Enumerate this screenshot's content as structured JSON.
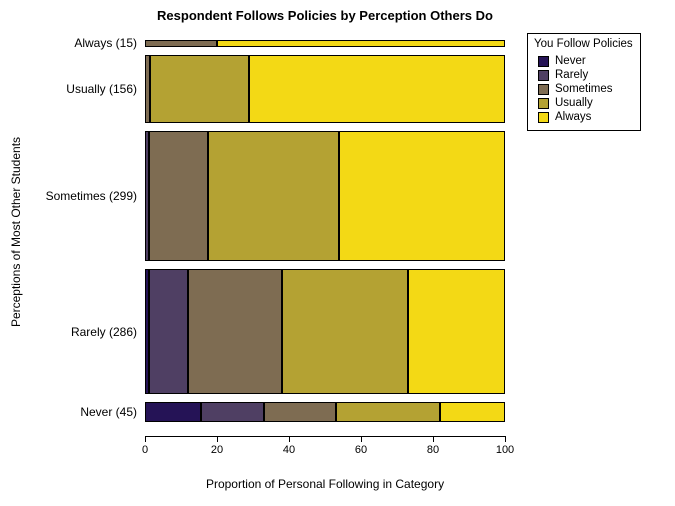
{
  "title": "Respondent Follows Policies by Perception Others Do",
  "x_axis": {
    "label": "Proportion of Personal Following in Category",
    "ticks": [
      0,
      20,
      40,
      60,
      80,
      100
    ]
  },
  "y_axis": {
    "label": "Perceptions of Most Other Students"
  },
  "chart_data": {
    "type": "bar",
    "subtype": "horizontal-stacked-spineplot",
    "title": "Respondent Follows Policies by Perception Others Do",
    "xlabel": "Proportion of Personal Following in Category",
    "ylabel": "Perceptions of Most Other Students",
    "xlim": [
      0,
      100
    ],
    "x_ticks": [
      0,
      20,
      40,
      60,
      80,
      100
    ],
    "grid": false,
    "bar_height_weighted_by_count": true,
    "legend": {
      "title": "You Follow Policies",
      "position": "top-right",
      "entries": [
        {
          "label": "Never",
          "color": "#251356"
        },
        {
          "label": "Rarely",
          "color": "#4F3F63"
        },
        {
          "label": "Sometimes",
          "color": "#7E6C52"
        },
        {
          "label": "Usually",
          "color": "#B4A233"
        },
        {
          "label": "Always",
          "color": "#F3D915"
        }
      ]
    },
    "series_order": [
      "Never",
      "Rarely",
      "Sometimes",
      "Usually",
      "Always"
    ],
    "rows": [
      {
        "category": "Always (15)",
        "count": 15,
        "segments_pct": {
          "Never": 0,
          "Rarely": 0,
          "Sometimes": 20,
          "Usually": 0,
          "Always": 80
        }
      },
      {
        "category": "Usually (156)",
        "count": 156,
        "segments_pct": {
          "Never": 0,
          "Rarely": 0,
          "Sometimes": 1.5,
          "Usually": 27.5,
          "Always": 71
        }
      },
      {
        "category": "Sometimes (299)",
        "count": 299,
        "segments_pct": {
          "Never": 0,
          "Rarely": 1,
          "Sometimes": 16.5,
          "Usually": 36.5,
          "Always": 46
        }
      },
      {
        "category": "Rarely (286)",
        "count": 286,
        "segments_pct": {
          "Never": 1,
          "Rarely": 11,
          "Sometimes": 26,
          "Usually": 35,
          "Always": 27
        }
      },
      {
        "category": "Never (45)",
        "count": 45,
        "segments_pct": {
          "Never": 15.5,
          "Rarely": 17.5,
          "Sometimes": 20,
          "Usually": 29,
          "Always": 18
        }
      }
    ]
  }
}
